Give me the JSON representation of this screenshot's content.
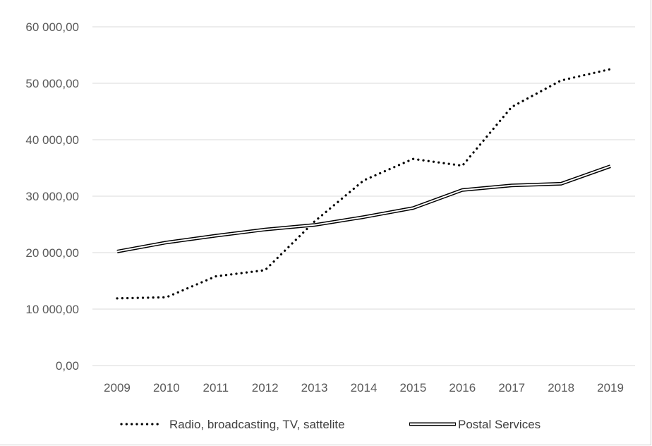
{
  "chart_data": {
    "type": "line",
    "title": "",
    "xlabel": "",
    "ylabel": "",
    "ylim": [
      0,
      60000
    ],
    "y_ticks": [
      0,
      10000,
      20000,
      30000,
      40000,
      50000,
      60000
    ],
    "y_tick_labels": [
      "0,00",
      "10 000,00",
      "20 000,00",
      "30 000,00",
      "40 000,00",
      "50 000,00",
      "60 000,00"
    ],
    "x": [
      "2009",
      "2010",
      "2011",
      "2012",
      "2013",
      "2014",
      "2015",
      "2016",
      "2017",
      "2018",
      "2019"
    ],
    "grid": true,
    "legend_position": "bottom",
    "series": [
      {
        "name": "Radio, broadcasting, TV, sattelite",
        "style": "dotted",
        "color": "#000000",
        "values": [
          11900,
          12100,
          15800,
          16900,
          25500,
          32800,
          36600,
          35400,
          45800,
          50500,
          52500
        ]
      },
      {
        "name": "Postal Services",
        "style": "double",
        "color": "#000000",
        "values": [
          20200,
          21800,
          23000,
          24100,
          24900,
          26300,
          27900,
          31100,
          31900,
          32200,
          35300
        ]
      }
    ]
  }
}
